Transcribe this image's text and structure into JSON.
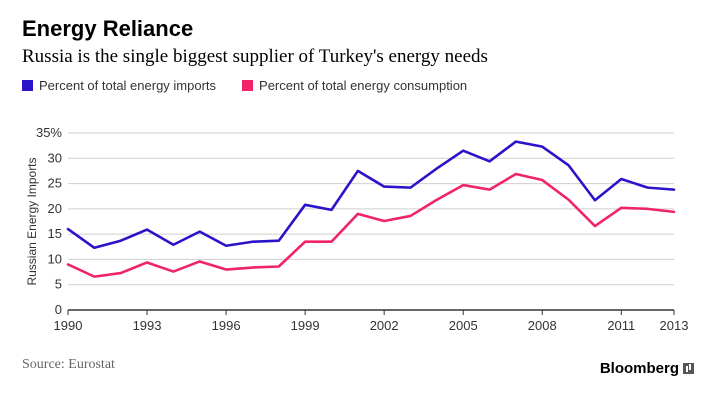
{
  "header": {
    "title": "Energy Reliance",
    "subtitle": "Russia is the single biggest supplier of Turkey's energy needs"
  },
  "footer": {
    "source": "Source: Eurostat",
    "brand": "Bloomberg"
  },
  "colors": {
    "imports": "#2b13c9",
    "consumption": "#f0236b",
    "grid": "#cfcfcf",
    "axis": "#333333"
  },
  "chart_data": {
    "type": "line",
    "title": "Energy Reliance",
    "subtitle": "Russia is the single biggest supplier of Turkey's energy needs",
    "xlabel": "",
    "ylabel": "Russian Energy Imports",
    "x": [
      1990,
      1991,
      1992,
      1993,
      1994,
      1995,
      1996,
      1997,
      1998,
      1999,
      2000,
      2001,
      2002,
      2003,
      2004,
      2005,
      2006,
      2007,
      2008,
      2009,
      2010,
      2011,
      2012,
      2013
    ],
    "xticks": [
      1990,
      1993,
      1996,
      1999,
      2002,
      2005,
      2008,
      2011,
      2013
    ],
    "xtick_labels": [
      "1990",
      "1993",
      "1996",
      "1999",
      "2002",
      "2005",
      "2008",
      "2011",
      "2013"
    ],
    "yticks": [
      0,
      5,
      10,
      15,
      20,
      25,
      30,
      35
    ],
    "ytick_labels": [
      "0",
      "5",
      "10",
      "15",
      "20",
      "25",
      "30",
      "35%"
    ],
    "xlim": [
      1990,
      2013
    ],
    "ylim": [
      0,
      35
    ],
    "grid": true,
    "legend_position": "top-left",
    "series": [
      {
        "name": "Percent of total energy imports",
        "color": "#2b13c9",
        "values": [
          16.0,
          12.3,
          13.7,
          15.9,
          12.9,
          15.5,
          12.7,
          13.5,
          13.7,
          20.8,
          19.8,
          27.5,
          24.4,
          24.2,
          28.0,
          31.5,
          29.4,
          33.3,
          32.3,
          28.6,
          21.7,
          25.9,
          24.2,
          23.8
        ]
      },
      {
        "name": "Percent of total energy consumption",
        "color": "#f0236b",
        "values": [
          9.0,
          6.6,
          7.3,
          9.4,
          7.6,
          9.6,
          8.0,
          8.4,
          8.6,
          13.5,
          13.5,
          19.0,
          17.6,
          18.6,
          21.8,
          24.7,
          23.8,
          26.9,
          25.7,
          21.8,
          16.6,
          20.2,
          20.0,
          19.4
        ]
      }
    ]
  }
}
